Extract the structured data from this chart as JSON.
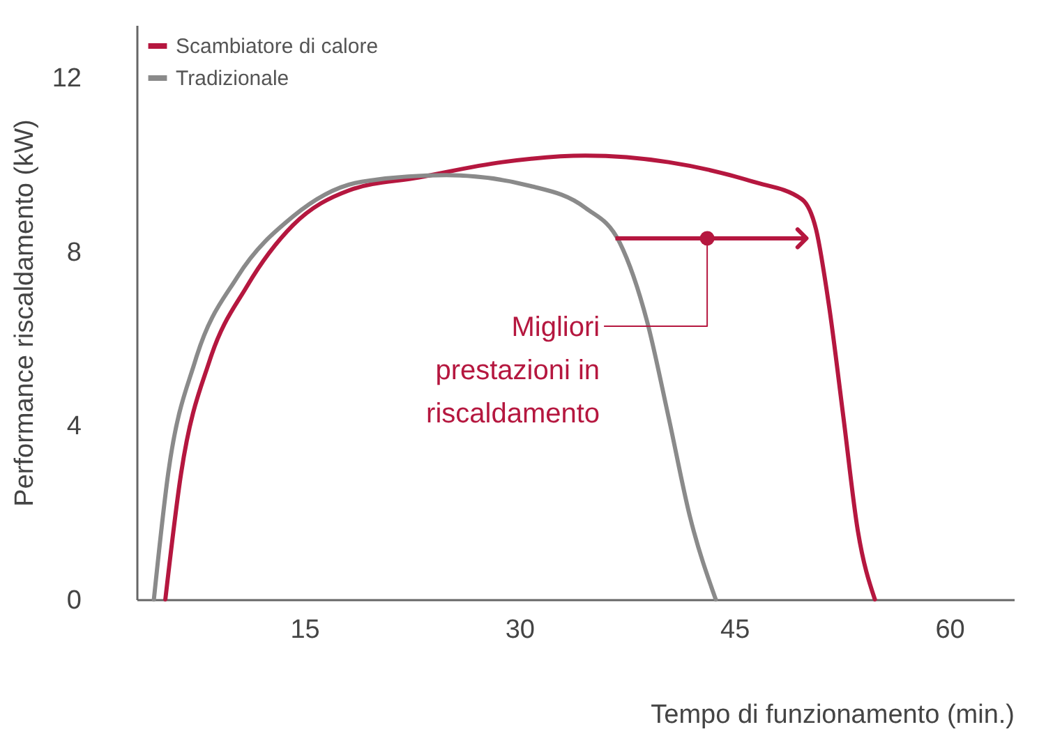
{
  "chart_data": {
    "type": "line",
    "xlabel": "Tempo di funzionamento (min.)",
    "ylabel": "Performance riscaldamento (kW)",
    "xlim": [
      3.3,
      64.5
    ],
    "ylim": [
      0,
      13.2
    ],
    "xticks": [
      15,
      30,
      45,
      60
    ],
    "yticks": [
      0,
      4,
      8,
      12
    ],
    "grid": false,
    "legend": "top left",
    "series": [
      {
        "name": "Scambiatore di calore",
        "color": "#b5173f",
        "x": [
          5.3,
          6.4,
          8.4,
          11.0,
          14.2,
          18.1,
          23.0,
          28.8,
          34.6,
          40.4,
          46.3,
          49.7,
          50.7,
          51.6,
          52.6,
          53.6,
          54.8
        ],
        "values": [
          0,
          2.9,
          5.5,
          7.2,
          8.6,
          9.4,
          9.7,
          10.05,
          10.2,
          10.05,
          9.6,
          9.2,
          8.5,
          6.75,
          4.2,
          1.6,
          0
        ]
      },
      {
        "name": "Tradizionale",
        "color": "#8a8a8a",
        "x": [
          4.5,
          5.5,
          7.4,
          10.3,
          14.2,
          19.0,
          24.9,
          30.8,
          34.6,
          37.0,
          38.9,
          40.4,
          41.9,
          43.7
        ],
        "values": [
          0,
          2.9,
          5.5,
          7.4,
          8.8,
          9.6,
          9.75,
          9.5,
          9.0,
          8.2,
          6.4,
          4.2,
          1.9,
          0
        ]
      }
    ],
    "annotations": [
      {
        "text": "Migliori prestazioni in riscaldamento",
        "x": 43.1,
        "y": 8.3
      }
    ]
  }
}
